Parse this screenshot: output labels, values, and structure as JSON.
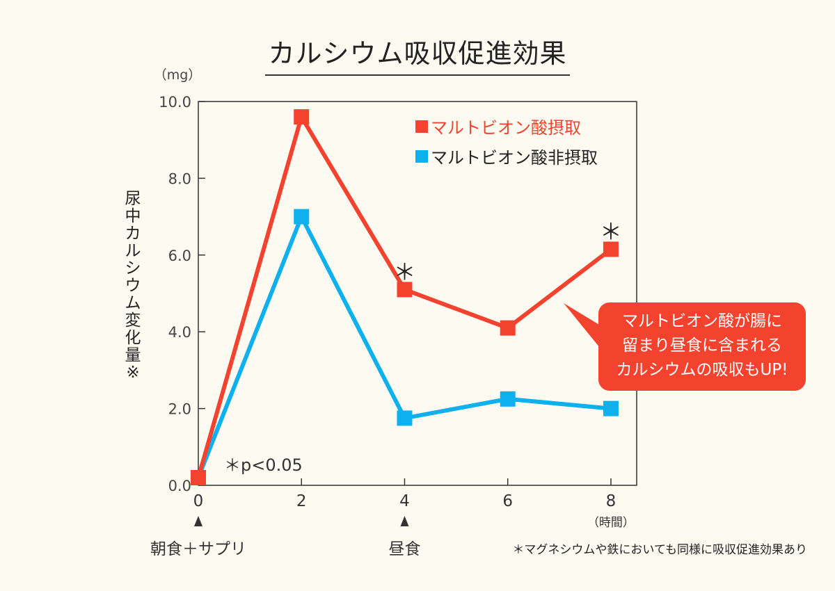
{
  "colors": {
    "series1": "#f3432f",
    "series2": "#0fb0ee",
    "background": "#fdfbf1",
    "plot_bg": "#fdfbf1"
  },
  "chart_data": {
    "type": "line",
    "title": "カルシウム吸収促進効果",
    "ylabel": "尿中カルシウム変化量※",
    "yunit": "（mg）",
    "xunit": "（時間）",
    "x": [
      0,
      2,
      4,
      6,
      8
    ],
    "xticks": [
      "0",
      "2",
      "4",
      "6",
      "8"
    ],
    "yticks": [
      "0.0",
      "2.0",
      "4.0",
      "6.0",
      "8.0",
      "10.0"
    ],
    "ylim": [
      0,
      10
    ],
    "xlim": [
      0,
      8.5
    ],
    "series": [
      {
        "name": "マルトビオン酸摂取",
        "color": "#f3432f",
        "values": [
          0.2,
          9.6,
          5.1,
          4.1,
          6.15
        ]
      },
      {
        "name": "マルトビオン酸非摂取",
        "color": "#0fb0ee",
        "values": [
          0.2,
          7.0,
          1.75,
          2.25,
          2.0
        ]
      }
    ],
    "significance": {
      "symbol": "＊",
      "at_x": [
        4,
        8
      ],
      "series": 0,
      "note": "＊p<0.05"
    },
    "markers": [
      {
        "x": 0,
        "label": "朝食＋サプリ"
      },
      {
        "x": 4,
        "label": "昼食"
      }
    ],
    "legend_position": "top-right"
  },
  "callout_lines": [
    "マルトビオン酸が腸に",
    "留まり昼食に含まれる",
    "カルシウムの吸収もUP!"
  ],
  "footnote": "＊マグネシウムや鉄においても同様に吸収促進効果あり"
}
